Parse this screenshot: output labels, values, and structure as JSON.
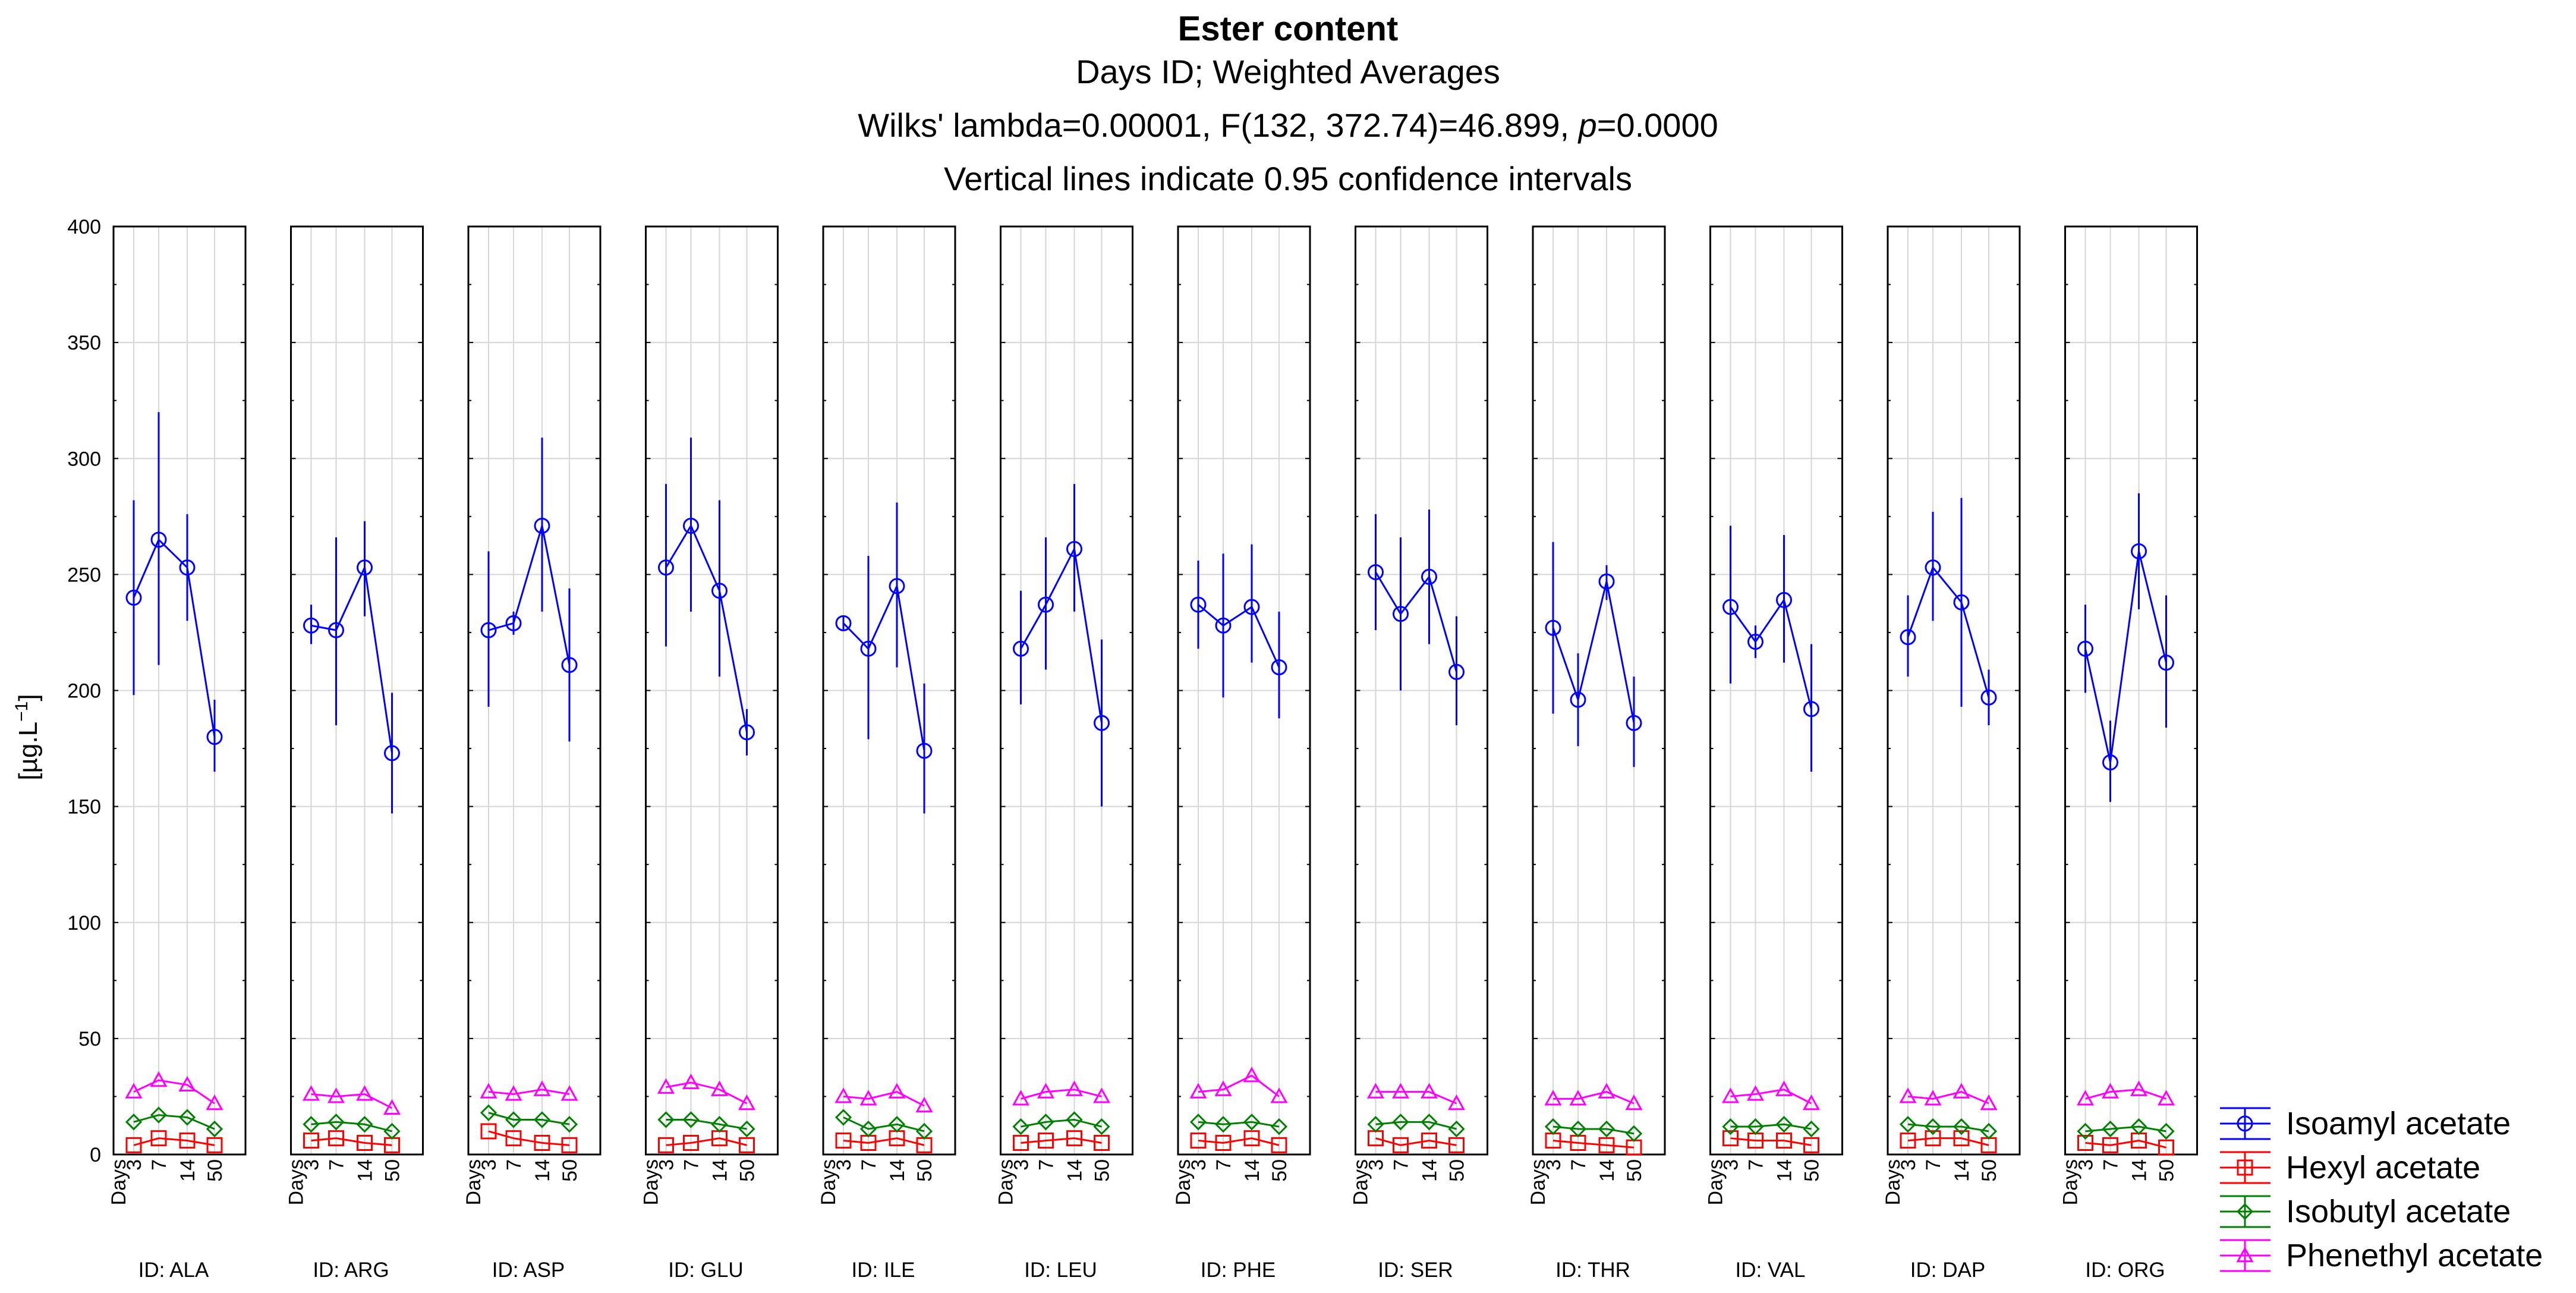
{
  "chart_data": {
    "type": "line",
    "title": "Ester content",
    "subtitle_lines": {
      "line1": "Days ID; Weighted Averages",
      "line2_prefix": "Wilks' lambda=0.00001, F(132, 372.74)=46.899, ",
      "line2_p": "p",
      "line2_suffix": "=0.0000",
      "line3": "Vertical lines indicate 0.95 confidence intervals"
    },
    "ylabel": "[µg.L",
    "ylabel_exp": "−1",
    "ylabel_close": "]",
    "ylim": [
      0,
      400
    ],
    "yticks": [
      0,
      50,
      100,
      150,
      200,
      250,
      300,
      350,
      400
    ],
    "x_prefix": "Days",
    "x": [
      "3",
      "7",
      "14",
      "50"
    ],
    "panels": [
      {
        "id": "ID: ALA",
        "series": {
          "isoamyl": [
            [
              240,
              198,
              282
            ],
            [
              265,
              211,
              320
            ],
            [
              253,
              230,
              276
            ],
            [
              180,
              165,
              196
            ]
          ],
          "hexyl": [
            4,
            7,
            6,
            4
          ],
          "isobutyl": [
            14,
            17,
            16,
            11
          ],
          "phenethyl": [
            27,
            32,
            30,
            22
          ]
        }
      },
      {
        "id": "ID: ARG",
        "series": {
          "isoamyl": [
            [
              228,
              220,
              237
            ],
            [
              226,
              185,
              266
            ],
            [
              253,
              232,
              273
            ],
            [
              173,
              147,
              199
            ]
          ],
          "hexyl": [
            6,
            7,
            5,
            4
          ],
          "isobutyl": [
            13,
            14,
            13,
            10
          ],
          "phenethyl": [
            26,
            25,
            26,
            20
          ]
        }
      },
      {
        "id": "ID: ASP",
        "series": {
          "isoamyl": [
            [
              226,
              193,
              260
            ],
            [
              229,
              224,
              234
            ],
            [
              271,
              234,
              309
            ],
            [
              211,
              178,
              244
            ]
          ],
          "hexyl": [
            10,
            7,
            5,
            4
          ],
          "isobutyl": [
            18,
            15,
            15,
            13
          ],
          "phenethyl": [
            27,
            26,
            28,
            26
          ]
        }
      },
      {
        "id": "ID: GLU",
        "series": {
          "isoamyl": [
            [
              253,
              219,
              289
            ],
            [
              271,
              234,
              309
            ],
            [
              243,
              206,
              282
            ],
            [
              182,
              172,
              192
            ]
          ],
          "hexyl": [
            4,
            5,
            7,
            4
          ],
          "isobutyl": [
            15,
            15,
            13,
            11
          ],
          "phenethyl": [
            29,
            31,
            28,
            22
          ]
        }
      },
      {
        "id": "ID: ILE",
        "series": {
          "isoamyl": [
            [
              229,
              226,
              232
            ],
            [
              218,
              179,
              258
            ],
            [
              245,
              210,
              281
            ],
            [
              174,
              147,
              203
            ]
          ],
          "hexyl": [
            6,
            5,
            7,
            4
          ],
          "isobutyl": [
            16,
            11,
            13,
            10
          ],
          "phenethyl": [
            25,
            24,
            27,
            21
          ]
        }
      },
      {
        "id": "ID: LEU",
        "series": {
          "isoamyl": [
            [
              218,
              194,
              243
            ],
            [
              237,
              209,
              266
            ],
            [
              261,
              234,
              289
            ],
            [
              186,
              150,
              222
            ]
          ],
          "hexyl": [
            5,
            6,
            7,
            5
          ],
          "isobutyl": [
            12,
            14,
            15,
            12
          ],
          "phenethyl": [
            24,
            27,
            28,
            25
          ]
        }
      },
      {
        "id": "ID: PHE",
        "series": {
          "isoamyl": [
            [
              237,
              218,
              256
            ],
            [
              228,
              197,
              259
            ],
            [
              236,
              212,
              263
            ],
            [
              210,
              188,
              234
            ]
          ],
          "hexyl": [
            6,
            5,
            7,
            4
          ],
          "isobutyl": [
            14,
            13,
            14,
            12
          ],
          "phenethyl": [
            27,
            28,
            34,
            25
          ]
        }
      },
      {
        "id": "ID: SER",
        "series": {
          "isoamyl": [
            [
              251,
              226,
              276
            ],
            [
              233,
              200,
              266
            ],
            [
              249,
              220,
              278
            ],
            [
              208,
              185,
              232
            ]
          ],
          "hexyl": [
            7,
            4,
            6,
            4
          ],
          "isobutyl": [
            13,
            14,
            14,
            11
          ],
          "phenethyl": [
            27,
            27,
            27,
            22
          ]
        }
      },
      {
        "id": "ID: THR",
        "series": {
          "isoamyl": [
            [
              227,
              190,
              264
            ],
            [
              196,
              176,
              216
            ],
            [
              247,
              239,
              254
            ],
            [
              186,
              167,
              206
            ]
          ],
          "hexyl": [
            6,
            5,
            4,
            3
          ],
          "isobutyl": [
            12,
            11,
            11,
            9
          ],
          "phenethyl": [
            24,
            24,
            27,
            22
          ]
        }
      },
      {
        "id": "ID: VAL",
        "series": {
          "isoamyl": [
            [
              236,
              203,
              271
            ],
            [
              221,
              214,
              228
            ],
            [
              239,
              212,
              267
            ],
            [
              192,
              165,
              220
            ]
          ],
          "hexyl": [
            7,
            6,
            6,
            4
          ],
          "isobutyl": [
            12,
            12,
            13,
            11
          ],
          "phenethyl": [
            25,
            26,
            28,
            22
          ]
        }
      },
      {
        "id": "ID: DAP",
        "series": {
          "isoamyl": [
            [
              223,
              206,
              241
            ],
            [
              253,
              230,
              277
            ],
            [
              238,
              193,
              283
            ],
            [
              197,
              185,
              209
            ]
          ],
          "hexyl": [
            6,
            7,
            7,
            4
          ],
          "isobutyl": [
            13,
            12,
            12,
            10
          ],
          "phenethyl": [
            25,
            24,
            27,
            22
          ]
        }
      },
      {
        "id": "ID: ORG",
        "series": {
          "isoamyl": [
            [
              218,
              199,
              237
            ],
            [
              169,
              152,
              187
            ],
            [
              260,
              235,
              285
            ],
            [
              212,
              184,
              241
            ]
          ],
          "hexyl": [
            5,
            4,
            6,
            3
          ],
          "isobutyl": [
            10,
            11,
            12,
            10
          ],
          "phenethyl": [
            24,
            27,
            28,
            24
          ]
        }
      }
    ],
    "legend": [
      {
        "key": "isoamyl",
        "name": "Isoamyl acetate",
        "color": "#0000ff",
        "marker": "circle"
      },
      {
        "key": "hexyl",
        "name": "Hexyl acetate",
        "color": "#ff0000",
        "marker": "square"
      },
      {
        "key": "isobutyl",
        "name": "Isobutyl acetate",
        "color": "#008000",
        "marker": "diamond"
      },
      {
        "key": "phenethyl",
        "name": "Phenethyl acetate",
        "color": "#ff00ff",
        "marker": "triangle"
      }
    ],
    "grid": true,
    "legend_position": "bottom-right"
  }
}
